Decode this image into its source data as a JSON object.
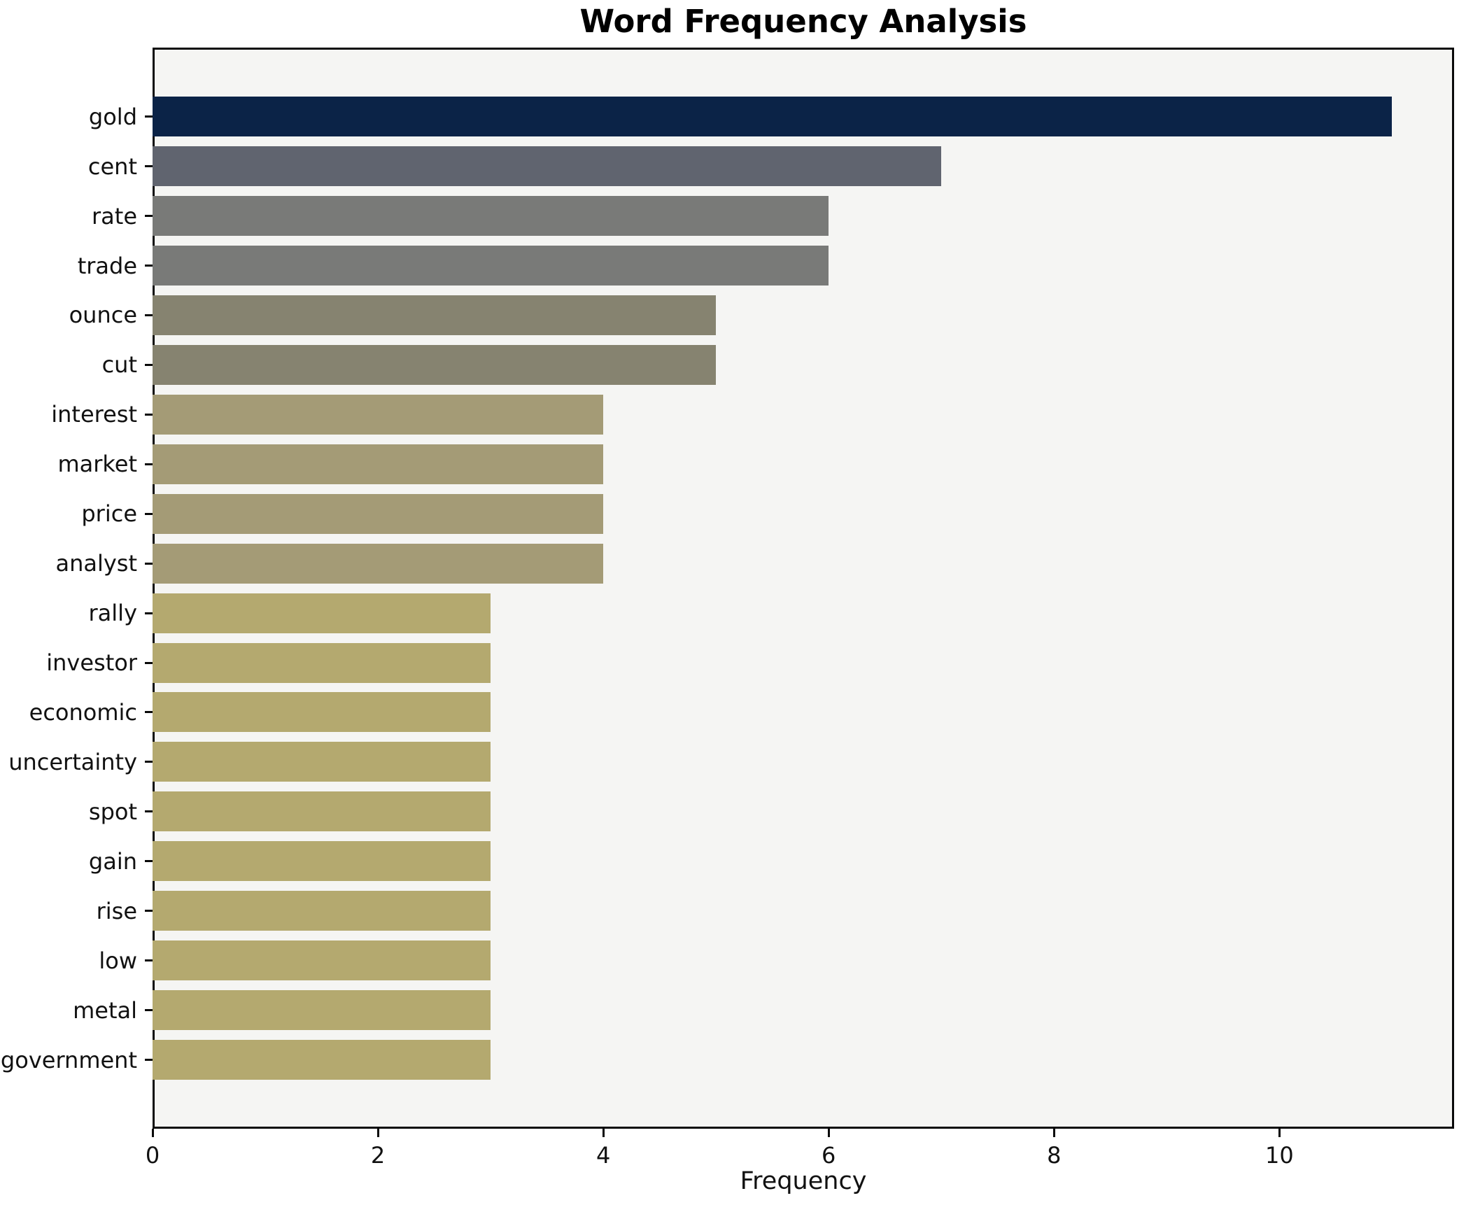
{
  "chart_data": {
    "type": "bar",
    "orientation": "horizontal",
    "title": "Word Frequency Analysis",
    "xlabel": "Frequency",
    "ylabel": "",
    "categories": [
      "gold",
      "cent",
      "rate",
      "trade",
      "ounce",
      "cut",
      "interest",
      "market",
      "price",
      "analyst",
      "rally",
      "investor",
      "economic",
      "uncertainty",
      "spot",
      "gain",
      "rise",
      "low",
      "metal",
      "government"
    ],
    "values": [
      11,
      7,
      6,
      6,
      5,
      5,
      4,
      4,
      4,
      4,
      3,
      3,
      3,
      3,
      3,
      3,
      3,
      3,
      3,
      3
    ],
    "bar_colors": [
      "#0b2347",
      "#60646f",
      "#797a78",
      "#797a78",
      "#868370",
      "#868370",
      "#a49b76",
      "#a49b76",
      "#a49b76",
      "#a49b76",
      "#b4a96f",
      "#b4a96f",
      "#b4a96f",
      "#b4a96f",
      "#b4a96f",
      "#b4a96f",
      "#b4a96f",
      "#b4a96f",
      "#b4a96f",
      "#b4a96f"
    ],
    "xlim": [
      0,
      11.55
    ],
    "xticks": [
      0,
      2,
      4,
      6,
      8,
      10
    ],
    "grid": false,
    "legend": null,
    "colors": {
      "figure_background": "#ffffff",
      "plot_background": "#f5f5f3",
      "spine": "#0a0a0a",
      "text": "#111111"
    }
  }
}
